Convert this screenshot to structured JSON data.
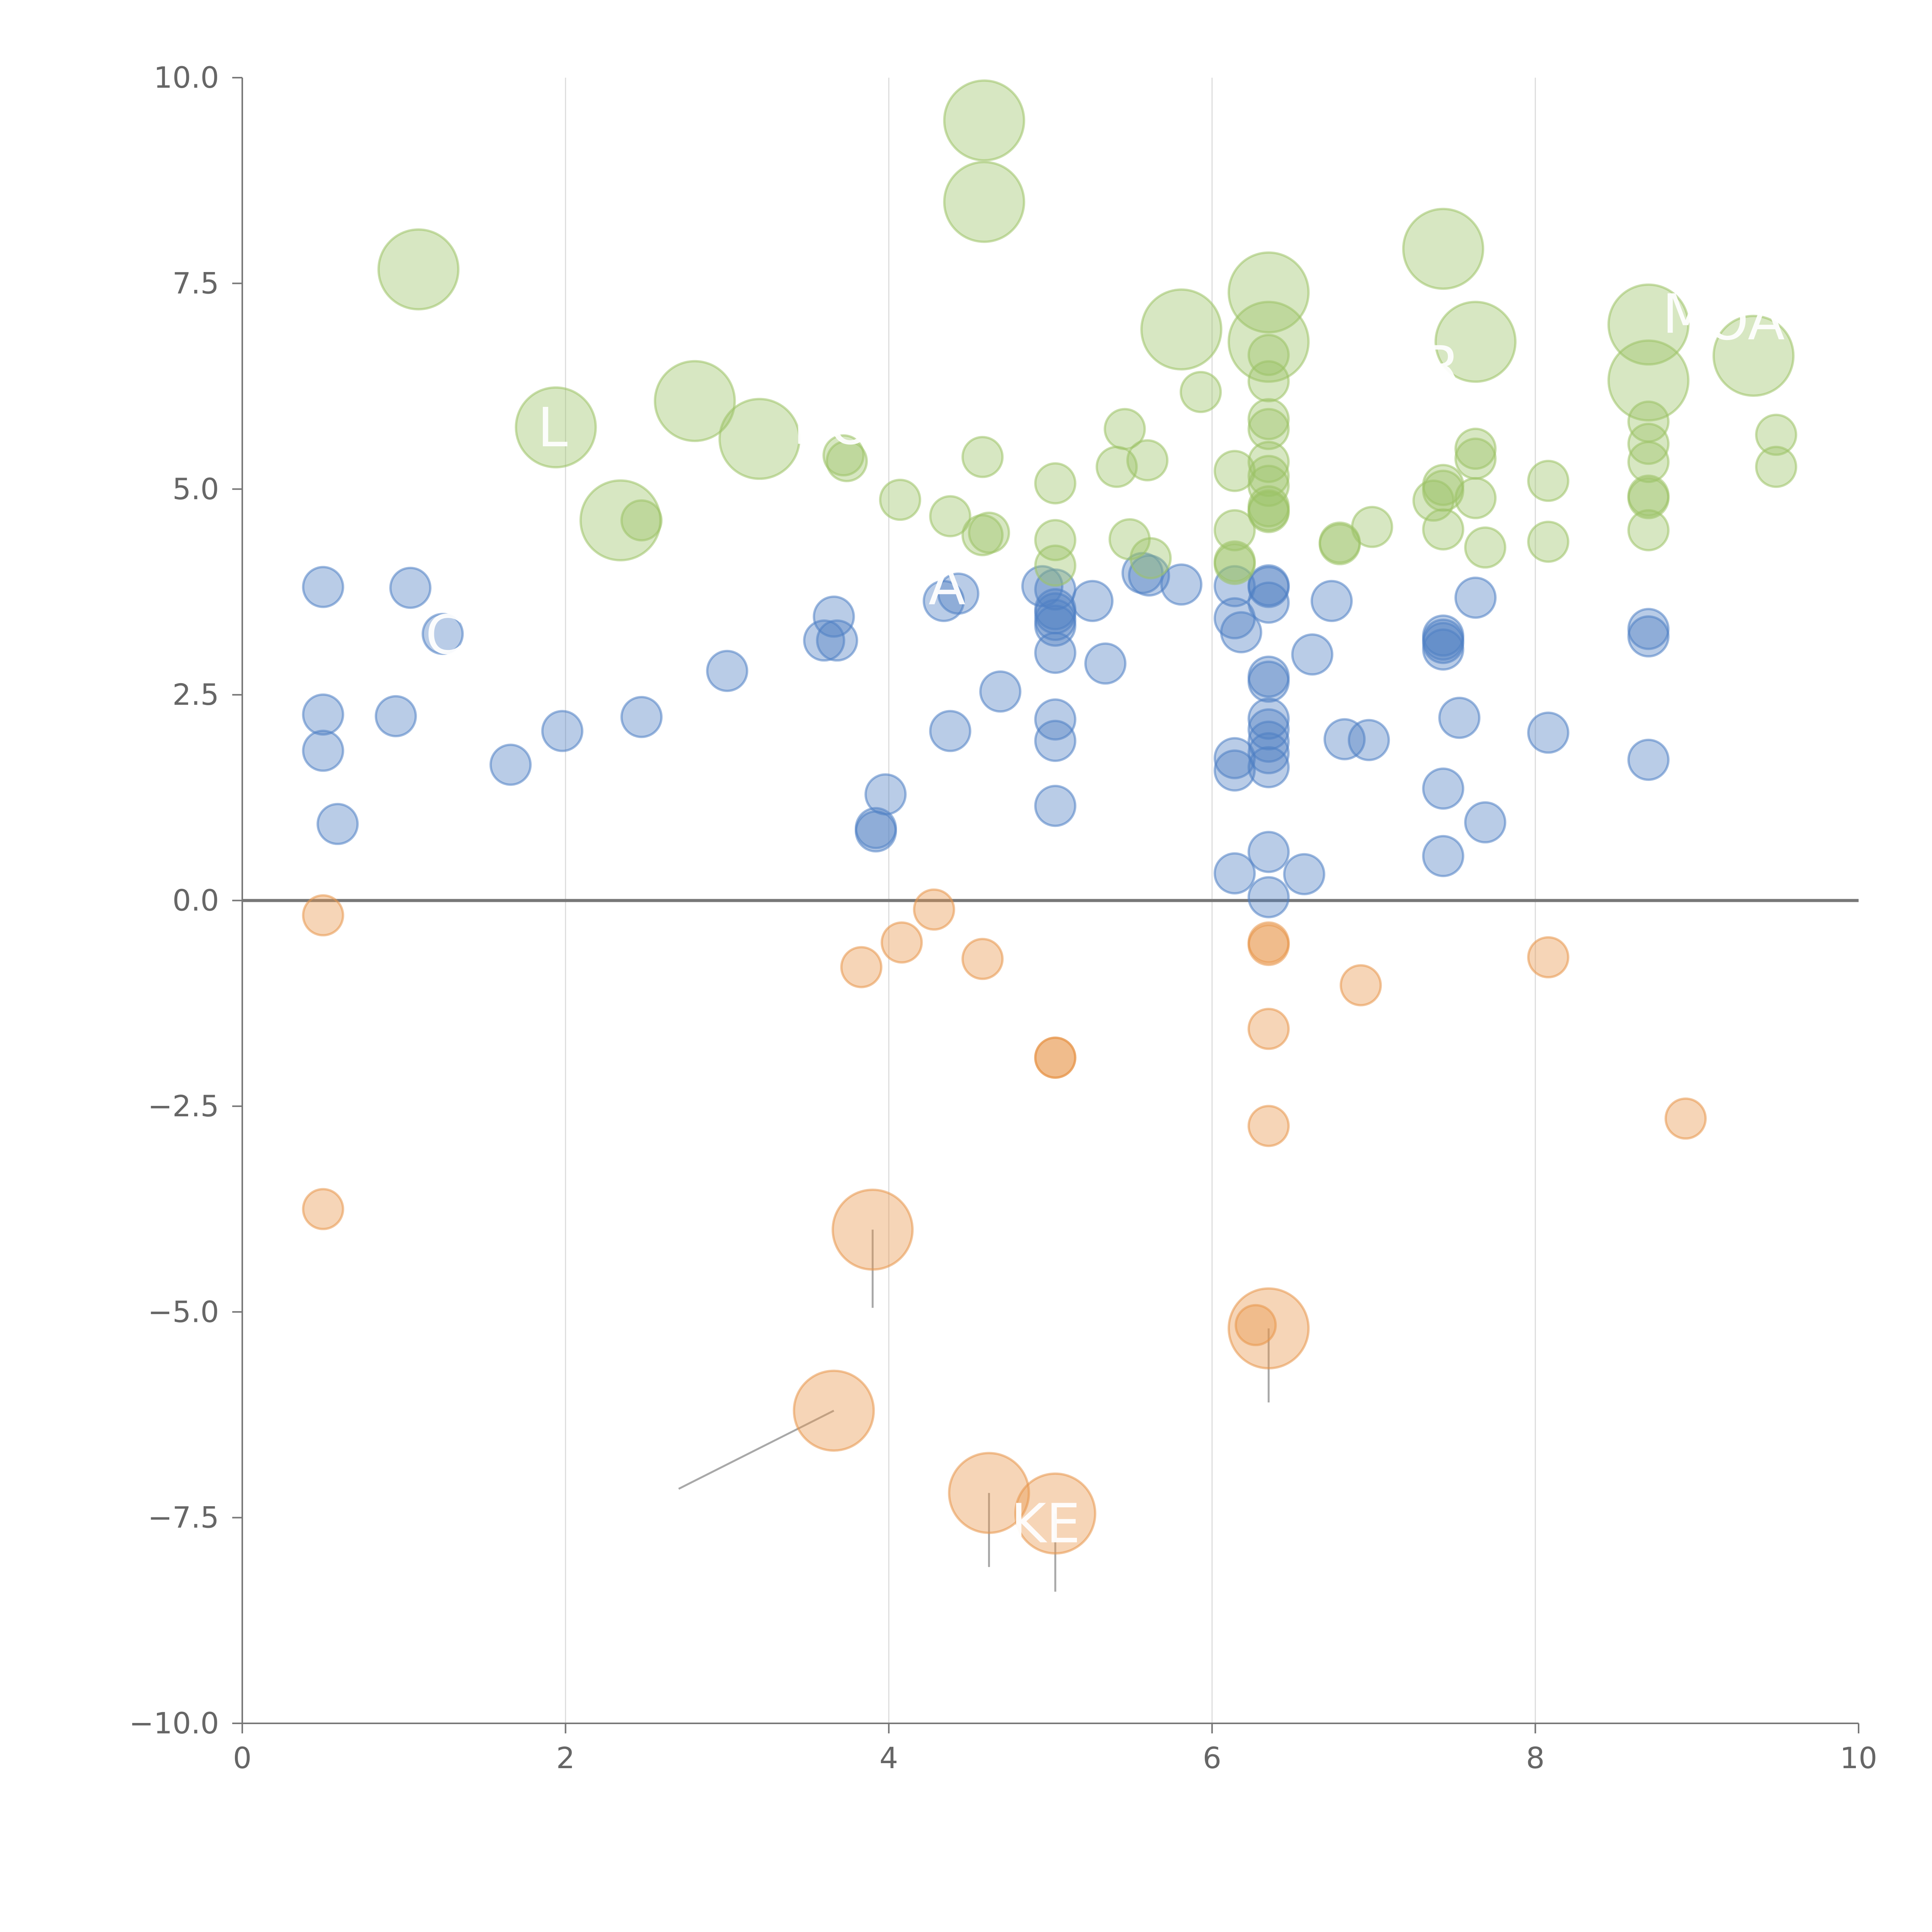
{
  "colors": {
    "negative": "#e8964b",
    "low": "#4f7fc4",
    "high": "#9cc266",
    "axis": "#777777",
    "zero_line": "#777777",
    "grid": "#dddddd",
    "tick_text": "#666666",
    "leader_line": "#999999",
    "label_text": "#ffffff"
  },
  "chart_data": {
    "type": "scatter",
    "title": "",
    "xlabel": "",
    "ylabel": "",
    "xlim": [
      0,
      10
    ],
    "ylim": [
      -10,
      10
    ],
    "x_ticks": [
      "0",
      "2",
      "4",
      "6",
      "8",
      "10"
    ],
    "y_ticks": [
      "10.0",
      "7.5",
      "5.0",
      "2.5",
      "0.0",
      "−2.5",
      "−5.0",
      "−7.5",
      "−10.0"
    ],
    "grid": "vertical lines at x = 2, 4, 6, 8",
    "zero_line": true,
    "series": [
      {
        "group": "negative",
        "points": [
          [
            0.5,
            -0.18,
            12
          ],
          [
            0.5,
            -3.75,
            12
          ],
          [
            3.83,
            -0.81,
            12
          ],
          [
            4.08,
            -0.51,
            12
          ],
          [
            4.28,
            -0.11,
            12
          ],
          [
            4.58,
            -0.71,
            12
          ],
          [
            5.03,
            -1.91,
            12
          ],
          [
            5.03,
            -1.91,
            12
          ],
          [
            6.35,
            -0.51,
            12
          ],
          [
            6.35,
            -0.54,
            12
          ],
          [
            6.35,
            -1.56,
            12
          ],
          [
            6.35,
            -2.74,
            12
          ],
          [
            6.27,
            -5.16,
            12
          ],
          [
            6.92,
            -1.03,
            12
          ],
          [
            8.08,
            -0.69,
            12
          ],
          [
            8.93,
            -2.65,
            12
          ],
          [
            3.9,
            -4.0,
            24
          ],
          [
            3.66,
            -6.2,
            24
          ],
          [
            4.62,
            -7.2,
            24
          ],
          [
            5.03,
            -7.45,
            24
          ],
          [
            6.35,
            -5.2,
            24
          ]
        ]
      },
      {
        "group": "low",
        "points": [
          [
            0.5,
            3.81,
            12
          ],
          [
            0.5,
            2.26,
            12
          ],
          [
            0.5,
            1.82,
            12
          ],
          [
            0.59,
            0.93,
            12
          ],
          [
            0.95,
            2.24,
            12
          ],
          [
            1.04,
            3.8,
            12
          ],
          [
            1.24,
            3.24,
            12
          ],
          [
            1.66,
            1.65,
            12
          ],
          [
            1.98,
            2.06,
            12
          ],
          [
            2.47,
            2.23,
            12
          ],
          [
            3.0,
            2.79,
            12
          ],
          [
            3.6,
            3.16,
            12
          ],
          [
            3.66,
            3.45,
            12
          ],
          [
            3.68,
            3.16,
            12
          ],
          [
            3.92,
            0.88,
            12
          ],
          [
            3.92,
            0.84,
            12
          ],
          [
            3.98,
            1.29,
            12
          ],
          [
            4.34,
            3.64,
            12
          ],
          [
            4.38,
            2.06,
            12
          ],
          [
            4.43,
            3.73,
            12
          ],
          [
            4.69,
            2.54,
            12
          ],
          [
            4.95,
            3.82,
            12
          ],
          [
            5.03,
            3.78,
            12
          ],
          [
            5.03,
            3.54,
            12
          ],
          [
            5.03,
            3.49,
            12
          ],
          [
            5.03,
            3.41,
            12
          ],
          [
            5.03,
            3.34,
            12
          ],
          [
            5.03,
            3.01,
            12
          ],
          [
            5.03,
            2.2,
            12
          ],
          [
            5.03,
            1.94,
            12
          ],
          [
            5.03,
            1.15,
            12
          ],
          [
            5.26,
            3.64,
            12
          ],
          [
            5.34,
            2.88,
            12
          ],
          [
            5.57,
            3.98,
            12
          ],
          [
            5.61,
            3.95,
            12
          ],
          [
            5.81,
            3.84,
            12
          ],
          [
            6.14,
            3.82,
            12
          ],
          [
            6.14,
            3.43,
            12
          ],
          [
            6.14,
            1.73,
            12
          ],
          [
            6.14,
            1.58,
            12
          ],
          [
            6.14,
            0.33,
            12
          ],
          [
            6.18,
            3.26,
            12
          ],
          [
            6.35,
            3.83,
            12
          ],
          [
            6.35,
            3.81,
            12
          ],
          [
            6.35,
            3.62,
            12
          ],
          [
            6.35,
            2.72,
            12
          ],
          [
            6.35,
            2.66,
            12
          ],
          [
            6.35,
            2.21,
            12
          ],
          [
            6.35,
            2.08,
            12
          ],
          [
            6.35,
            1.93,
            12
          ],
          [
            6.35,
            1.79,
            12
          ],
          [
            6.35,
            1.62,
            12
          ],
          [
            6.35,
            0.59,
            12
          ],
          [
            6.35,
            0.04,
            12
          ],
          [
            6.57,
            0.32,
            12
          ],
          [
            6.62,
            2.99,
            12
          ],
          [
            6.74,
            3.64,
            12
          ],
          [
            6.82,
            1.96,
            12
          ],
          [
            6.97,
            1.95,
            12
          ],
          [
            7.43,
            3.22,
            12
          ],
          [
            7.43,
            3.17,
            12
          ],
          [
            7.43,
            3.13,
            12
          ],
          [
            7.43,
            3.05,
            12
          ],
          [
            7.43,
            1.36,
            12
          ],
          [
            7.43,
            0.54,
            12
          ],
          [
            7.53,
            2.22,
            12
          ],
          [
            7.63,
            3.68,
            12
          ],
          [
            7.69,
            0.95,
            12
          ],
          [
            8.08,
            2.04,
            12
          ],
          [
            8.7,
            3.3,
            12
          ],
          [
            8.7,
            3.21,
            12
          ],
          [
            8.7,
            1.71,
            12
          ]
        ]
      },
      {
        "group": "high",
        "points": [
          [
            2.47,
            4.62,
            12
          ],
          [
            3.72,
            5.41,
            12
          ],
          [
            3.74,
            5.34,
            12
          ],
          [
            4.07,
            4.87,
            12
          ],
          [
            4.38,
            4.67,
            12
          ],
          [
            4.58,
            5.39,
            12
          ],
          [
            4.58,
            4.44,
            12
          ],
          [
            4.62,
            4.47,
            12
          ],
          [
            5.03,
            5.07,
            12
          ],
          [
            5.03,
            4.38,
            12
          ],
          [
            5.03,
            4.07,
            12
          ],
          [
            5.41,
            5.27,
            12
          ],
          [
            5.46,
            5.73,
            12
          ],
          [
            5.49,
            4.39,
            12
          ],
          [
            5.6,
            5.35,
            12
          ],
          [
            5.62,
            4.16,
            12
          ],
          [
            5.93,
            6.18,
            12
          ],
          [
            6.14,
            5.22,
            12
          ],
          [
            6.14,
            4.5,
            12
          ],
          [
            6.14,
            4.12,
            12
          ],
          [
            6.14,
            4.09,
            12
          ],
          [
            6.35,
            6.63,
            12
          ],
          [
            6.35,
            6.31,
            12
          ],
          [
            6.35,
            5.85,
            12
          ],
          [
            6.35,
            5.73,
            12
          ],
          [
            6.35,
            5.33,
            12
          ],
          [
            6.35,
            5.16,
            12
          ],
          [
            6.35,
            5.04,
            12
          ],
          [
            6.35,
            4.79,
            12
          ],
          [
            6.35,
            4.74,
            12
          ],
          [
            6.35,
            4.72,
            12
          ],
          [
            6.79,
            4.35,
            12
          ],
          [
            6.79,
            4.33,
            12
          ],
          [
            6.99,
            4.54,
            12
          ],
          [
            7.37,
            4.86,
            12
          ],
          [
            7.43,
            5.05,
            12
          ],
          [
            7.43,
            4.98,
            12
          ],
          [
            7.43,
            4.51,
            12
          ],
          [
            7.63,
            5.49,
            12
          ],
          [
            7.63,
            5.37,
            12
          ],
          [
            7.63,
            4.89,
            12
          ],
          [
            7.69,
            4.29,
            12
          ],
          [
            8.08,
            5.1,
            12
          ],
          [
            8.08,
            4.36,
            12
          ],
          [
            8.7,
            5.82,
            12
          ],
          [
            8.7,
            5.55,
            12
          ],
          [
            8.7,
            5.33,
            12
          ],
          [
            8.7,
            4.92,
            12
          ],
          [
            8.7,
            4.89,
            12
          ],
          [
            8.7,
            4.5,
            12
          ],
          [
            9.49,
            5.66,
            12
          ],
          [
            9.49,
            5.27,
            12
          ],
          [
            1.09,
            7.67,
            24
          ],
          [
            1.94,
            5.75,
            24
          ],
          [
            2.34,
            4.62,
            24
          ],
          [
            2.8,
            6.07,
            24
          ],
          [
            3.2,
            5.61,
            24
          ],
          [
            4.59,
            9.48,
            24
          ],
          [
            4.59,
            8.49,
            24
          ],
          [
            5.81,
            6.94,
            24
          ],
          [
            6.35,
            7.39,
            24
          ],
          [
            6.35,
            6.79,
            24
          ],
          [
            7.43,
            7.92,
            24
          ],
          [
            7.63,
            6.79,
            24
          ],
          [
            8.7,
            7.0,
            24
          ],
          [
            8.7,
            6.32,
            24
          ],
          [
            9.35,
            6.62,
            24
          ]
        ]
      }
    ],
    "leader_lines": [
      [
        3.9,
        -4.0,
        3.9,
        -4.95
      ],
      [
        3.66,
        -6.2,
        2.7,
        -7.15
      ],
      [
        4.62,
        -7.2,
        4.62,
        -8.1
      ],
      [
        5.03,
        -7.45,
        5.03,
        -8.4
      ],
      [
        6.35,
        -5.2,
        6.35,
        -6.1
      ],
      [
        1.09,
        7.67,
        1.0,
        7.85
      ],
      [
        1.94,
        5.75,
        1.85,
        5.55
      ],
      [
        2.34,
        4.62,
        2.2,
        4.45
      ],
      [
        2.8,
        6.07,
        2.92,
        6.3
      ],
      [
        3.2,
        5.61,
        3.1,
        5.78
      ],
      [
        4.59,
        9.48,
        4.78,
        9.52
      ],
      [
        4.59,
        8.49,
        4.43,
        8.72
      ],
      [
        5.81,
        6.94,
        5.6,
        6.82
      ],
      [
        6.35,
        7.39,
        6.52,
        7.6
      ],
      [
        6.35,
        6.79,
        6.2,
        6.95
      ],
      [
        7.43,
        7.92,
        7.62,
        8.02
      ],
      [
        7.63,
        6.79,
        7.44,
        6.9
      ],
      [
        8.7,
        7.0,
        8.82,
        7.15
      ],
      [
        8.7,
        6.32,
        8.77,
        6.05
      ],
      [
        9.35,
        6.62,
        9.36,
        6.3
      ]
    ],
    "labels": [
      {
        "text": "L",
        "x": 1.92,
        "y": 5.52
      },
      {
        "text": "BO",
        "x": 3.65,
        "y": 5.55
      },
      {
        "text": "A",
        "x": 4.36,
        "y": 3.6
      },
      {
        "text": "R",
        "x": 7.42,
        "y": 6.27
      },
      {
        "text": "M",
        "x": 8.93,
        "y": 6.9
      },
      {
        "text": "OA",
        "x": 9.3,
        "y": 6.82
      },
      {
        "text": "C",
        "x": 1.25,
        "y": 3.0
      },
      {
        "text": "KE",
        "x": 4.97,
        "y": -7.8
      }
    ]
  }
}
